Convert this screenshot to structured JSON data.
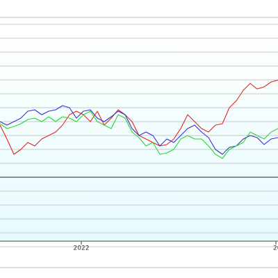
{
  "chart_data": {
    "type": "line",
    "x": [
      0,
      1,
      2,
      3,
      4,
      5,
      6,
      7,
      8,
      9,
      10,
      11,
      12,
      13,
      14,
      15,
      16,
      17,
      18,
      19,
      20,
      21,
      22,
      23,
      24,
      25,
      26,
      27,
      28,
      29,
      30,
      31,
      32,
      33,
      34,
      35,
      36,
      37,
      38,
      39,
      40
    ],
    "xlim": [
      0,
      40
    ],
    "xticks": [
      {
        "value": 11.7,
        "label": "2022"
      },
      {
        "value": 39.7,
        "label": "20"
      }
    ],
    "ylim": [
      0,
      16
    ],
    "yticks": [
      0,
      1,
      2,
      3,
      4,
      5,
      6,
      7,
      8,
      9,
      10,
      11,
      12,
      13,
      14,
      15,
      16
    ],
    "grid": true,
    "series": [
      {
        "color": "#e8201c",
        "values": [
          8.75,
          7.75,
          6.65,
          7,
          7.5,
          7.25,
          7.75,
          8,
          8.25,
          8.75,
          9.5,
          9.75,
          9.5,
          9,
          9.75,
          8.75,
          9.25,
          9.85,
          9.5,
          9,
          8,
          7.75,
          7.5,
          7.25,
          7.35,
          7.75,
          8.5,
          9.5,
          9,
          8.5,
          8.25,
          8.75,
          8.85,
          10,
          10.5,
          11.25,
          11.75,
          11.35,
          11.5,
          11.85,
          12
        ]
      },
      {
        "color": "#3a2ccf",
        "values": [
          9,
          8.75,
          9,
          9.25,
          9.75,
          9.85,
          9.5,
          9.75,
          9.85,
          10.15,
          10,
          9.25,
          9.75,
          9.85,
          9.25,
          9,
          9.35,
          9.75,
          9.5,
          8.5,
          8,
          8.25,
          8,
          7.25,
          7.75,
          7.5,
          8,
          8.5,
          8.75,
          8.25,
          7.85,
          7,
          6.65,
          7.15,
          7.25,
          7.75,
          8,
          7.85,
          7.35,
          7.75,
          7.85
        ]
      },
      {
        "color": "#27d62a",
        "values": [
          8.85,
          8.5,
          8.65,
          8.85,
          9.15,
          9.25,
          9,
          9.35,
          9,
          9.35,
          9.25,
          9,
          9.5,
          9.75,
          9,
          8.75,
          8.5,
          9.5,
          9.25,
          8.25,
          7.85,
          7.25,
          7.5,
          6.65,
          6.75,
          7,
          7.75,
          8,
          7.75,
          7.75,
          7.25,
          6.65,
          6.35,
          7,
          7.25,
          7.5,
          8.25,
          8,
          7.75,
          8.25,
          8.5
        ]
      }
    ]
  }
}
